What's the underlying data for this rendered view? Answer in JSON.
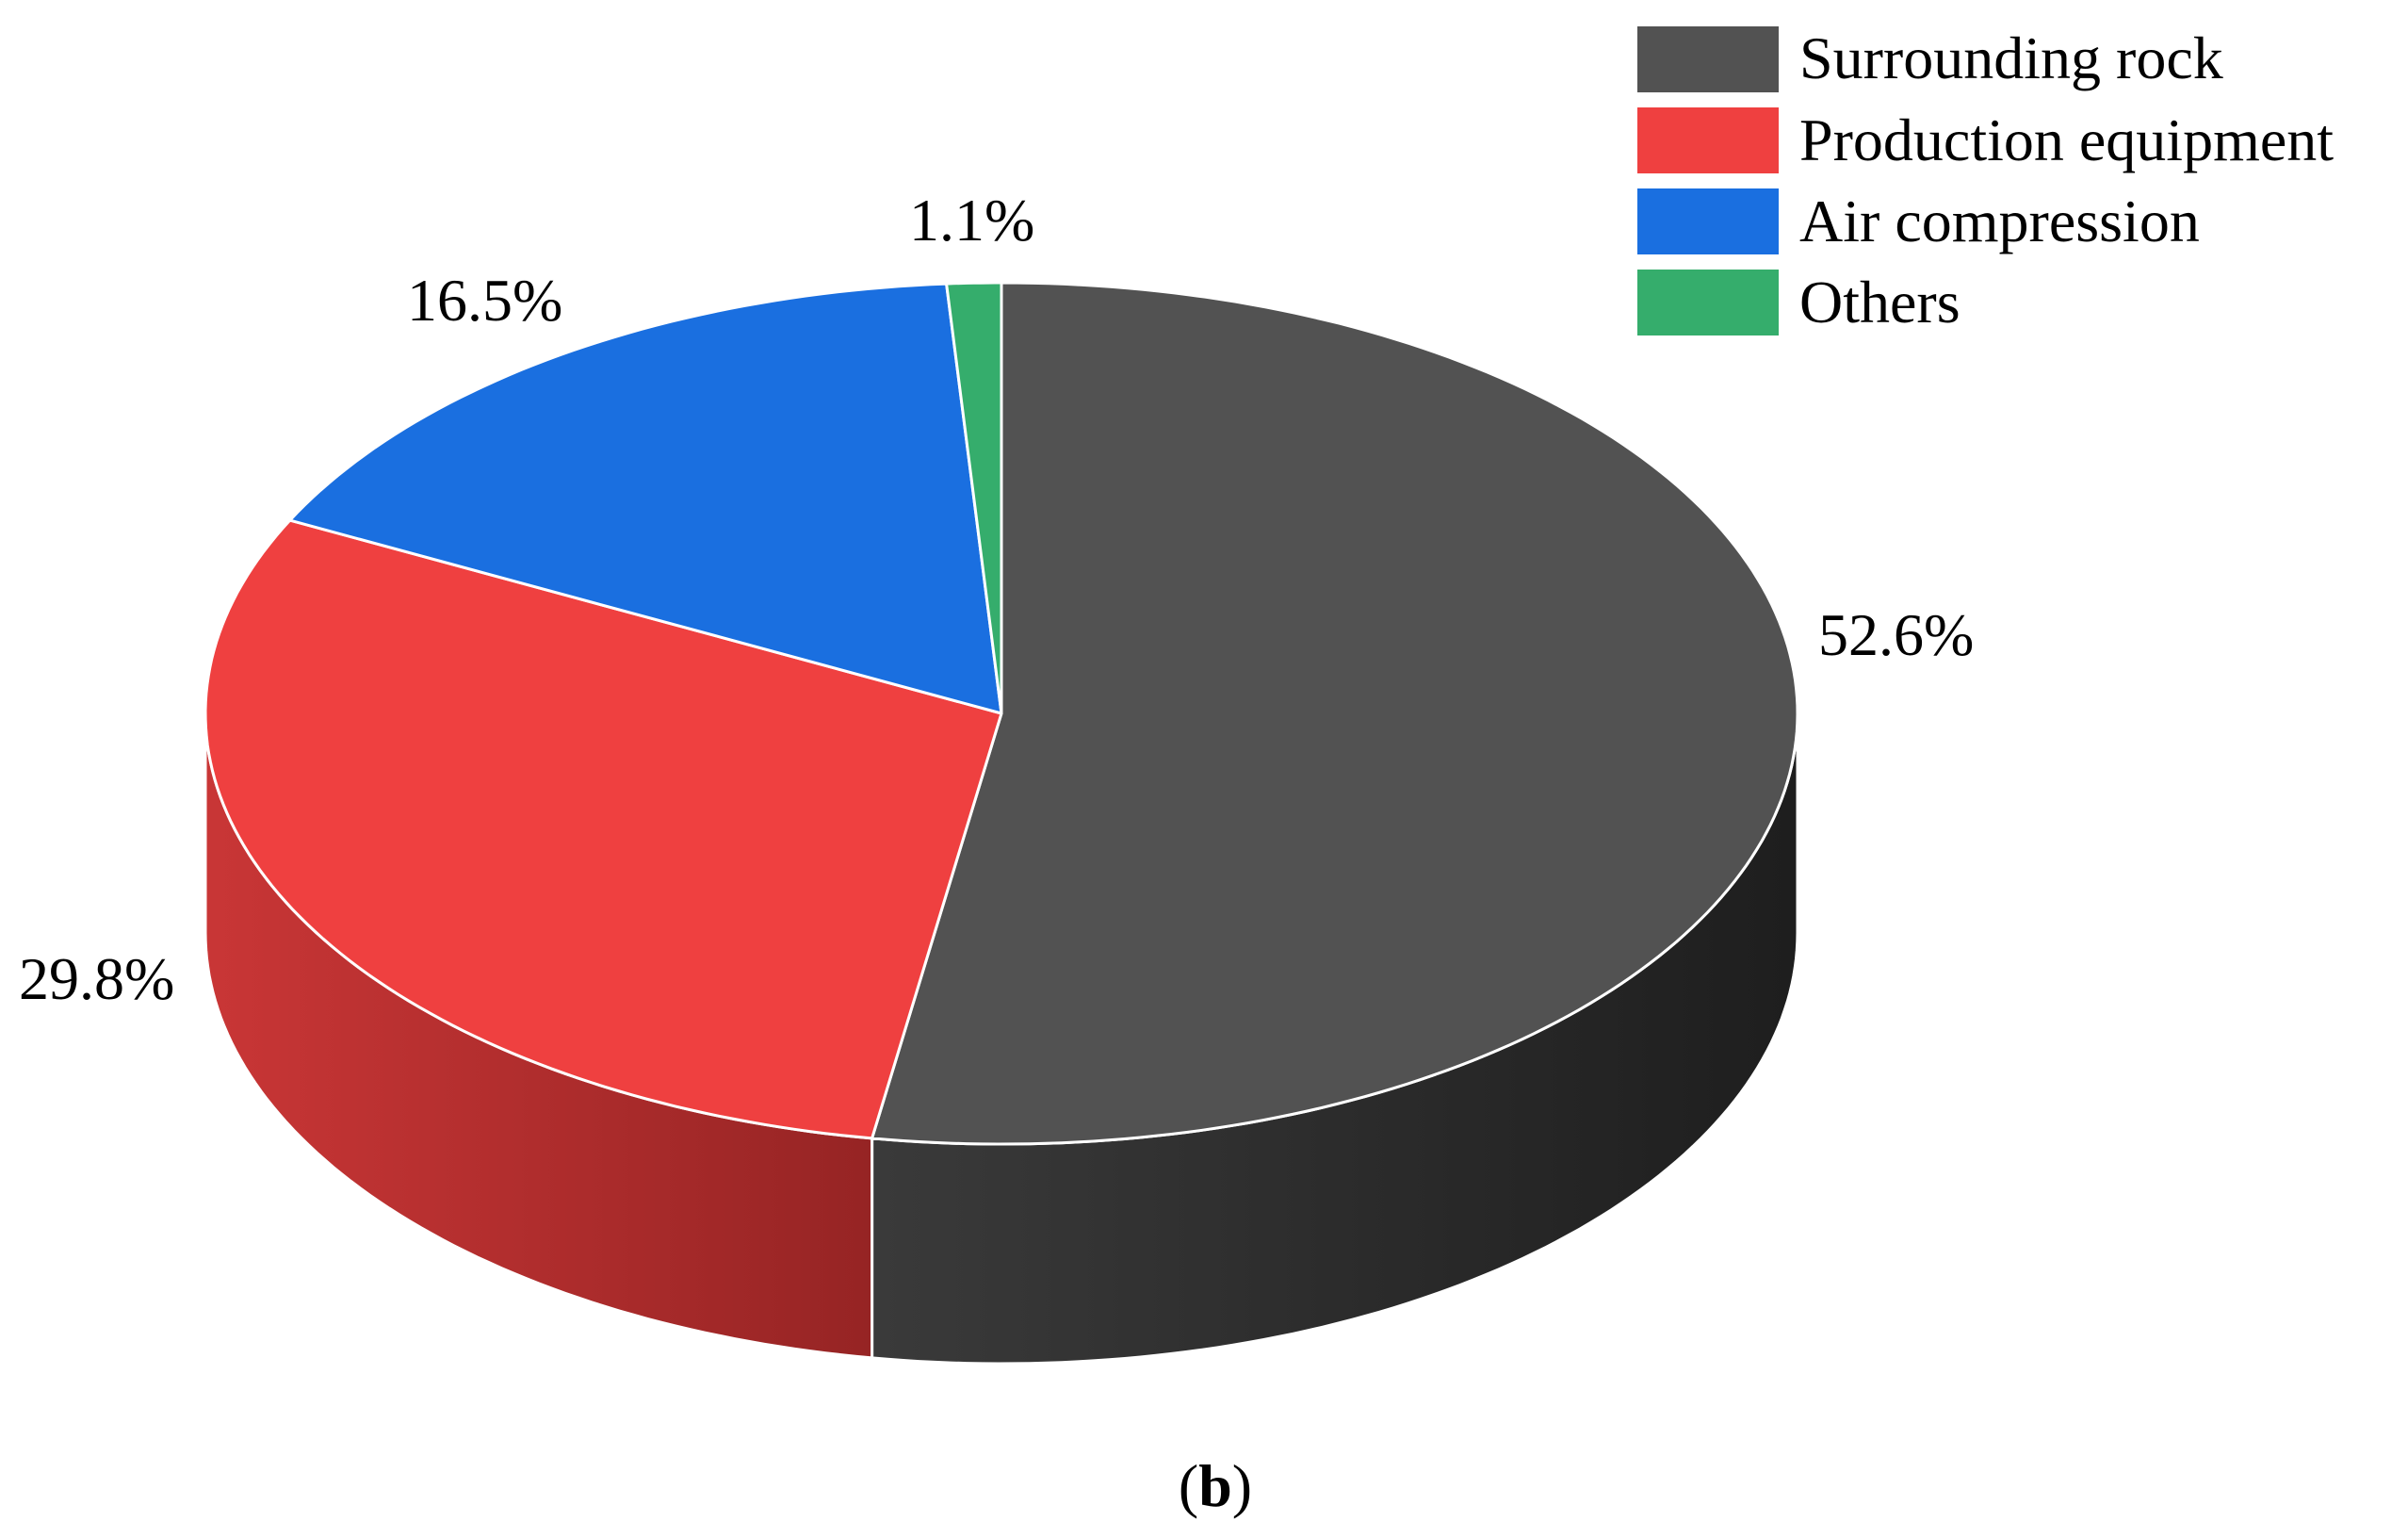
{
  "chart_data": {
    "type": "pie",
    "style": "3d",
    "categories": [
      "Surrounding rock",
      "Production equipment",
      "Air compression",
      "Others"
    ],
    "values": [
      52.6,
      29.8,
      16.5,
      1.1
    ],
    "labels": [
      "52.6%",
      "29.8%",
      "16.5%",
      "1.1%"
    ],
    "colors": [
      "#525252",
      "#ef4040",
      "#1a6fe0",
      "#35ad6c"
    ],
    "side_colors": [
      "#2c2c2c",
      "#b52e2e",
      "#134fa0",
      "#237a4b"
    ],
    "legend_position": "top-right",
    "caption_open": "(",
    "caption_letter": "b",
    "caption_close": ")"
  }
}
